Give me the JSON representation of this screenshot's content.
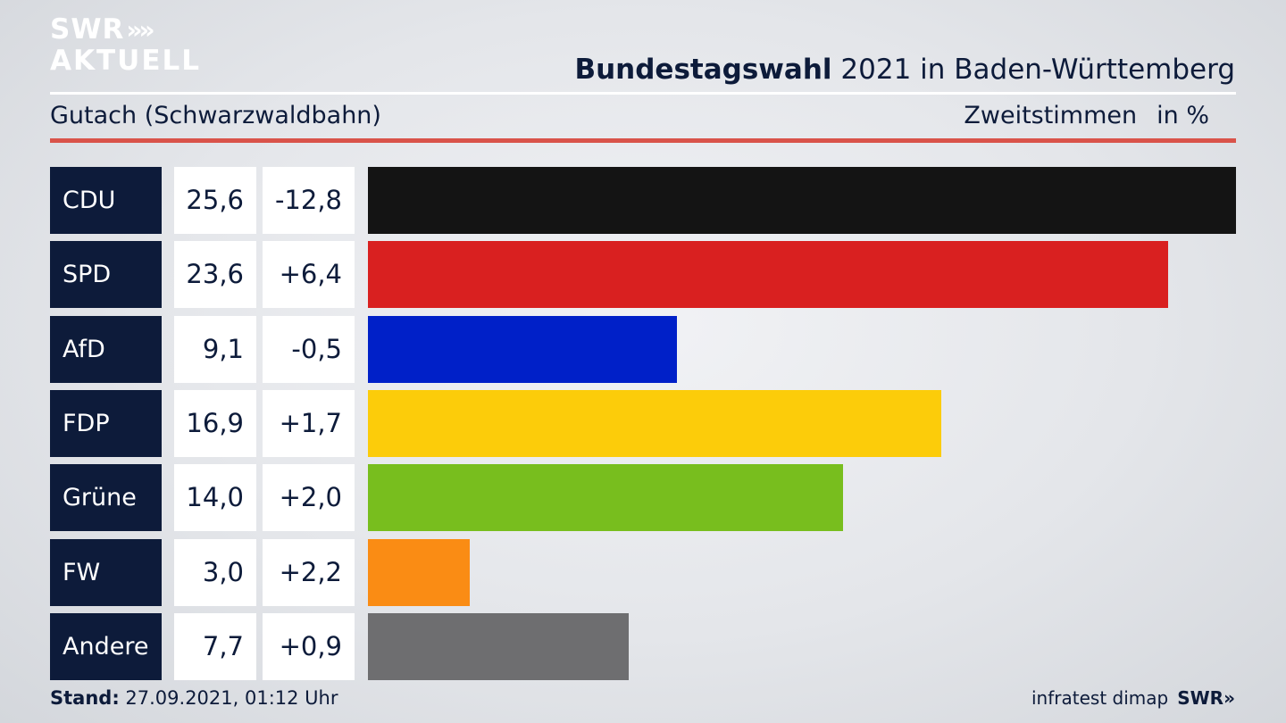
{
  "brand": {
    "logo_line1": "SWR",
    "logo_line2": "AKTUELL",
    "logo_chevrons": "»",
    "footer_logo": "SWR»"
  },
  "header": {
    "title_bold": "Bundestagswahl",
    "title_rest": " 2021 in Baden-Württemberg",
    "subtitle": "Gutach (Schwarzwaldbahn)",
    "measure": "Zweitstimmen",
    "unit": "in %"
  },
  "footer": {
    "stand_label": "Stand:",
    "stand_value": " 27.09.2021, 01:12 Uhr",
    "source": "infratest dimap"
  },
  "chart_data": {
    "type": "bar",
    "orientation": "horizontal",
    "title": "Bundestagswahl 2021 in Baden-Württemberg",
    "subtitle": "Gutach (Schwarzwaldbahn)",
    "xlabel": "Zweitstimmen in %",
    "categories": [
      "CDU",
      "SPD",
      "AfD",
      "FDP",
      "Grüne",
      "FW",
      "Andere"
    ],
    "values": [
      25.6,
      23.6,
      9.1,
      16.9,
      14.0,
      3.0,
      7.7
    ],
    "value_labels": [
      "25,6",
      "23,6",
      "9,1",
      "16,9",
      "14,0",
      "3,0",
      "7,7"
    ],
    "changes": [
      -12.8,
      6.4,
      -0.5,
      1.7,
      2.0,
      2.2,
      0.9
    ],
    "change_labels": [
      "-12,8",
      "+6,4",
      "-0,5",
      "+1,7",
      "+2,0",
      "+2,2",
      "+0,9"
    ],
    "colors": [
      "#141414",
      "#d92020",
      "#0020c8",
      "#fccc0a",
      "#78be1e",
      "#fa8c14",
      "#6e6e70"
    ],
    "xlim": [
      0,
      25.6
    ],
    "grid": false,
    "legend": "none"
  }
}
